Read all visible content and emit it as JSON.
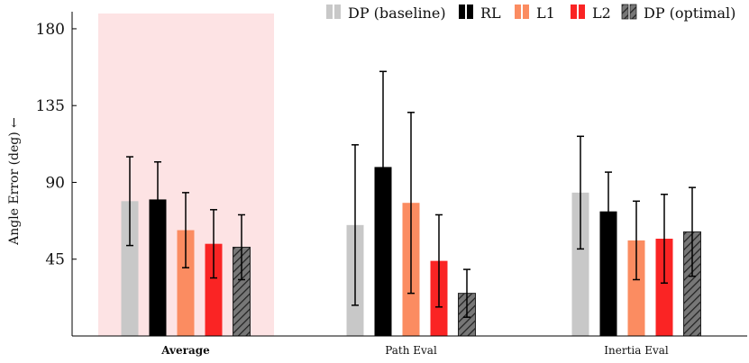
{
  "chart_data": {
    "type": "bar",
    "categories": [
      "Average",
      "Path Eval",
      "Inertia Eval"
    ],
    "highlight_category": "Average",
    "ylabel": "Angle Error (deg) ←",
    "ylim": [
      0,
      190
    ],
    "yticks": [
      45,
      90,
      135,
      180
    ],
    "legend_position": "top",
    "series": [
      {
        "name": "DP (baseline)",
        "color": "#c8c8c8",
        "pattern": "solid",
        "values": [
          79,
          65,
          84
        ],
        "errors": [
          26,
          47,
          33
        ]
      },
      {
        "name": "RL",
        "color": "#000000",
        "pattern": "solid",
        "values": [
          80,
          99,
          73
        ],
        "errors": [
          22,
          56,
          23
        ]
      },
      {
        "name": "L1",
        "color": "#fb8c61",
        "pattern": "solid",
        "values": [
          62,
          78,
          56
        ],
        "errors": [
          22,
          53,
          23
        ]
      },
      {
        "name": "L2",
        "color": "#fa2424",
        "pattern": "solid",
        "values": [
          54,
          44,
          57
        ],
        "errors": [
          20,
          27,
          26
        ]
      },
      {
        "name": "DP (optimal)",
        "color": "#777777",
        "pattern": "hatch",
        "values": [
          52,
          25,
          61
        ],
        "errors": [
          19,
          14,
          26
        ]
      }
    ]
  }
}
